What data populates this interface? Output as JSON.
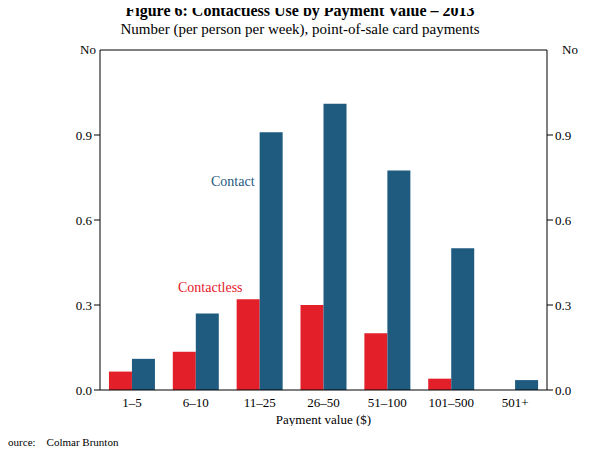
{
  "chart_data": {
    "type": "bar",
    "title": "Figure 6: Contactless Use by Payment Value – 2013",
    "subtitle": "Number (per person per week), point-of-sale card payments",
    "x_label": "Payment value ($)",
    "y_label": "No",
    "source": "Source:    Colmar Brunton",
    "categories": [
      "1–5",
      "6–10",
      "11–25",
      "26–50",
      "51–100",
      "101–500",
      "501+"
    ],
    "series": [
      {
        "name": "Contactless",
        "color": "#e3202a",
        "values": [
          0.065,
          0.135,
          0.32,
          0.3,
          0.2,
          0.04,
          0
        ]
      },
      {
        "name": "Contact",
        "color": "#1f5a7f",
        "values": [
          0.11,
          0.27,
          0.91,
          1.01,
          0.775,
          0.5,
          0.035
        ]
      }
    ],
    "ylim": [
      0,
      1.2
    ],
    "yticks": [
      {
        "value": 0,
        "label": "0.0"
      },
      0.3,
      0.6,
      0.9
    ],
    "grid": false
  }
}
